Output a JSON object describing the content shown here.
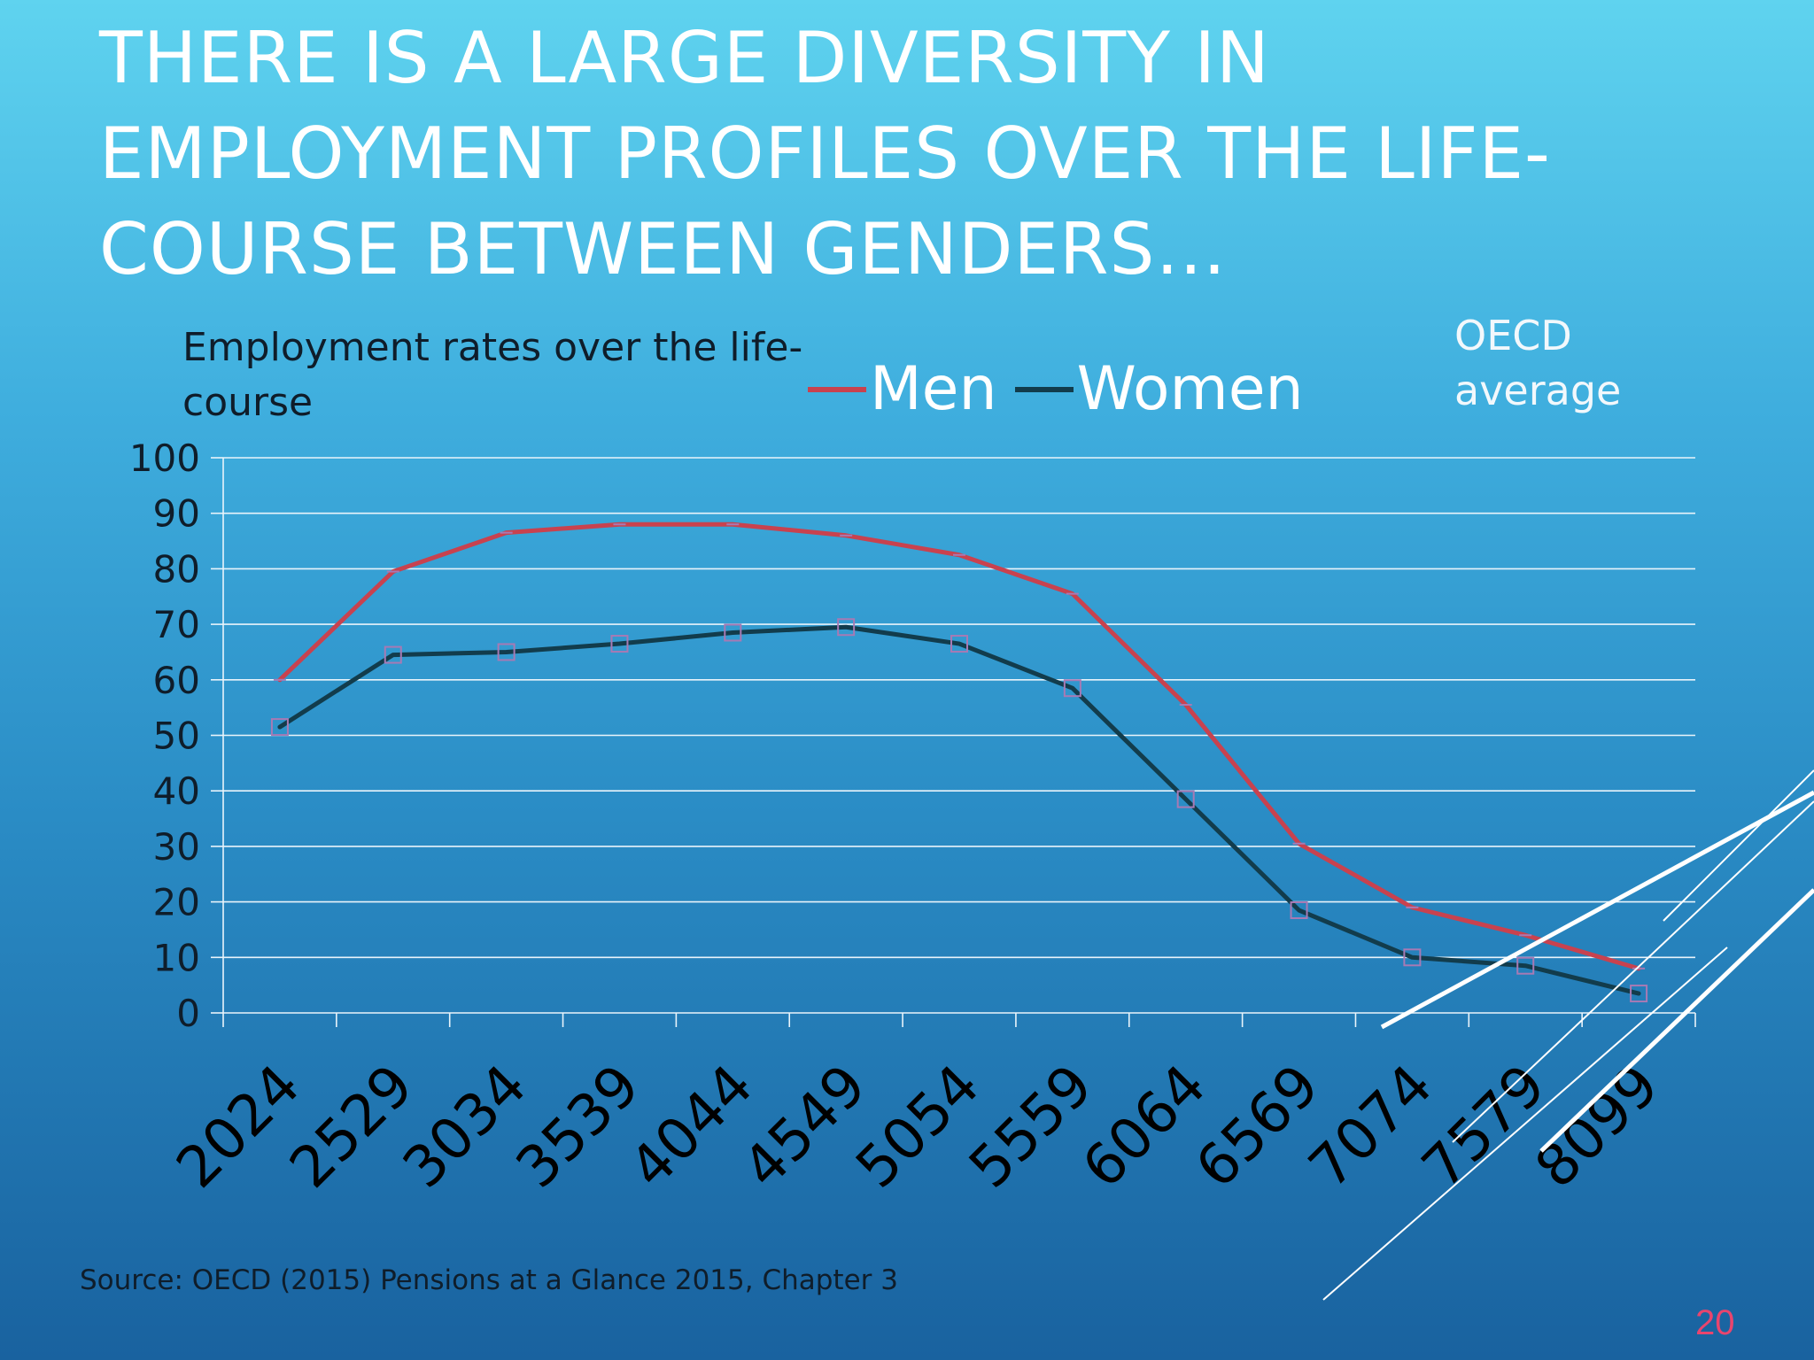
{
  "slide": {
    "title": " THERE IS A LARGE DIVERSITY IN\nEMPLOYMENT PROFILES OVER THE LIFE-\nCOURSE BETWEEN GENDERS…",
    "source": "Source: OECD (2015) Pensions at a Glance 2015, Chapter 3",
    "page_number": "20",
    "region_label_line1": "OECD",
    "region_label_line2": "average"
  },
  "colors": {
    "men": "#c8424f",
    "women": "#123c4c",
    "marker": "#a77ab4",
    "grid": "#e9f4fb",
    "tick_text": "#0f1d2a"
  },
  "chart_data": {
    "type": "line",
    "title": "Employment rates over the life-course",
    "categories": [
      "2024",
      "2529",
      "3034",
      "3539",
      "4044",
      "4549",
      "5054",
      "5559",
      "6064",
      "6569",
      "7074",
      "7579",
      "8099"
    ],
    "series": [
      {
        "name": "Men",
        "values": [
          60,
          79.5,
          86.5,
          88,
          88,
          86,
          82.5,
          75.5,
          55.5,
          30.5,
          19,
          14,
          8
        ]
      },
      {
        "name": "Women",
        "values": [
          51.5,
          64.5,
          65,
          66.5,
          68.5,
          69.5,
          66.5,
          58.5,
          38.5,
          18.5,
          10,
          8.5,
          3.5
        ]
      }
    ],
    "ylim": [
      0,
      100
    ],
    "yticks": [
      "0",
      "10",
      "20",
      "30",
      "40",
      "50",
      "60",
      "70",
      "80",
      "90",
      "100"
    ],
    "grid": true,
    "legend_position": "top"
  }
}
